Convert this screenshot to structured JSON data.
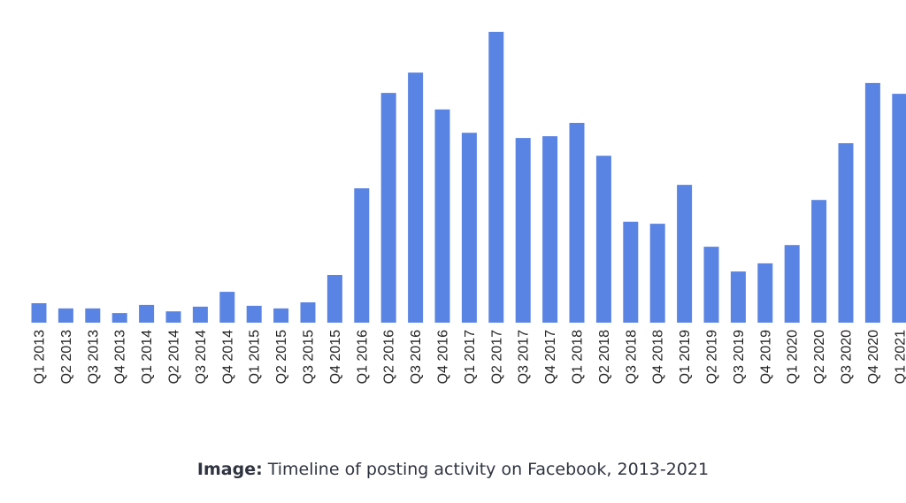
{
  "colors": {
    "bar": "#5A84E3",
    "caption_text": "#2f3440"
  },
  "caption": {
    "label": "Image:",
    "text": " Timeline of posting activity on Facebook, 2013-2021"
  },
  "chart_data": {
    "type": "bar",
    "title": "",
    "xlabel": "",
    "ylabel": "",
    "ylim": [
      0,
      100
    ],
    "grid": false,
    "legend": "none",
    "categories": [
      "Q1 2013",
      "Q2 2013",
      "Q3 2013",
      "Q4 2013",
      "Q1 2014",
      "Q2 2014",
      "Q3 2014",
      "Q4 2014",
      "Q1 2015",
      "Q2 2015",
      "Q3 2015",
      "Q4 2015",
      "Q1 2016",
      "Q2 2016",
      "Q3 2016",
      "Q4 2016",
      "Q1 2017",
      "Q2 2017",
      "Q3 2017",
      "Q4 2017",
      "Q1 2018",
      "Q2 2018",
      "Q3 2018",
      "Q4 2018",
      "Q1 2019",
      "Q2 2019",
      "Q3 2019",
      "Q4 2019",
      "Q1 2020",
      "Q2 2020",
      "Q3 2020",
      "Q4 2020",
      "Q1 2021"
    ],
    "values": [
      6.7,
      4.9,
      4.9,
      3.3,
      6.1,
      3.9,
      5.5,
      10.6,
      5.8,
      4.9,
      7.0,
      16.4,
      46.2,
      79.0,
      86.0,
      73.3,
      65.3,
      100.0,
      63.5,
      64.1,
      68.7,
      57.4,
      34.7,
      34.0,
      47.4,
      26.1,
      17.6,
      20.4,
      26.7,
      42.2,
      61.7,
      82.4,
      78.7
    ]
  }
}
